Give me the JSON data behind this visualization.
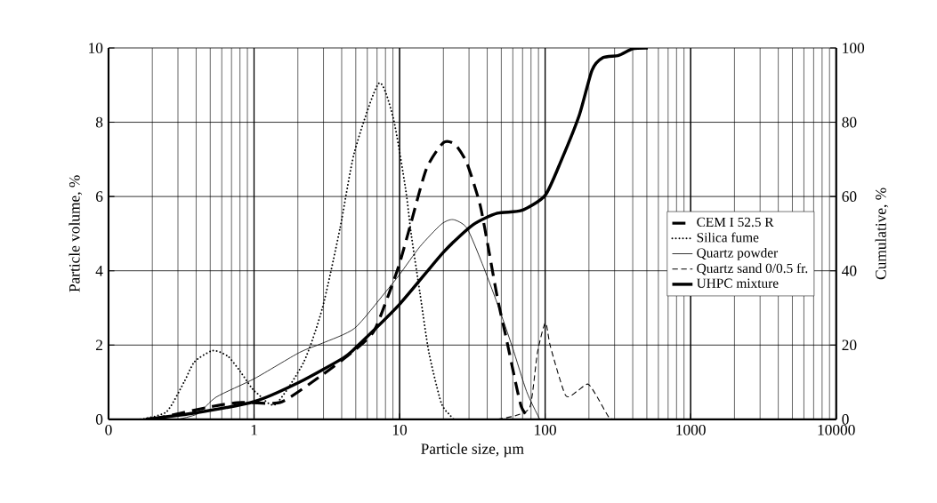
{
  "chart_data": {
    "type": "line",
    "xlabel": "Particle size, µm",
    "ylabel": "Particle volume, %",
    "y2label": "Cumulative, %",
    "log": "x",
    "grid": true,
    "legend": "right",
    "marker": "none",
    "xlim": [
      0.1,
      10000
    ],
    "xticks": [
      {
        "value": 0.1,
        "label": "0"
      },
      1,
      10,
      100,
      1000,
      10000
    ],
    "ylim": [
      0,
      10
    ],
    "yticks": [
      0,
      2,
      4,
      6,
      8,
      10
    ],
    "y2lim": [
      0,
      100
    ],
    "y2ticks": [
      0,
      20,
      40,
      60,
      80,
      100
    ],
    "series": [
      {
        "name": "CEM I 52.5 R",
        "color": "#000000",
        "line_style": "dashed",
        "x": [
          0.2,
          0.52,
          0.77,
          0.96,
          1.55,
          2.95,
          4.7,
          6.6,
          8.3,
          10,
          12,
          15.3,
          20,
          24.1,
          29,
          35.6,
          40.8,
          47.1,
          54.3,
          62.6,
          68.5,
          74.6,
          78.9
        ],
        "values": [
          0,
          0.35,
          0.45,
          0.45,
          0.47,
          1.2,
          1.8,
          2.35,
          3.3,
          4.2,
          5.3,
          6.75,
          7.45,
          7.4,
          6.9,
          5.8,
          4.6,
          3.25,
          2.15,
          1.0,
          0.35,
          0.1,
          0
        ]
      },
      {
        "name": "Silica fume",
        "color": "#000000",
        "line_style": "dotted",
        "x": [
          0.166,
          0.25,
          0.33,
          0.39,
          0.52,
          0.66,
          0.8,
          0.96,
          1.05,
          1.4,
          2.2,
          2.95,
          3.9,
          4.9,
          7.2,
          9.06,
          11,
          12,
          13.8,
          15.9,
          19.3,
          22.3,
          23.5
        ],
        "values": [
          0,
          0.2,
          1.0,
          1.55,
          1.85,
          1.7,
          1.3,
          0.85,
          0.7,
          0.4,
          1.55,
          3.0,
          5.15,
          7.2,
          9.05,
          8.1,
          6.2,
          5.0,
          3.4,
          1.8,
          0.45,
          0.1,
          0
        ]
      },
      {
        "name": "Quartz powder",
        "color": "#000000",
        "line_style": "solid",
        "x": [
          0.3,
          0.41,
          0.55,
          1.01,
          2.05,
          2.95,
          4.9,
          7.9,
          10,
          13.8,
          19.3,
          23.3,
          29,
          36.9,
          47.1,
          59.5,
          74.6,
          90.6,
          94
        ],
        "values": [
          0,
          0.15,
          0.6,
          1.1,
          1.8,
          2.05,
          2.45,
          3.4,
          3.9,
          4.65,
          5.25,
          5.38,
          5.15,
          4.2,
          3.1,
          1.95,
          0.75,
          0.05,
          0
        ]
      },
      {
        "name": "Quartz sand 0/0.5 fr.",
        "color": "#000000",
        "line_style": "dashed",
        "x": [
          47,
          62.6,
          78.9,
          88.6,
          100.5,
          108.9,
          138,
          165,
          197,
          228,
          275,
          310
        ],
        "values": [
          0,
          0.1,
          0.35,
          1.8,
          2.6,
          1.95,
          0.65,
          0.75,
          0.95,
          0.6,
          0.05,
          0
        ]
      },
      {
        "name": "UHPC mixture",
        "color": "#000000",
        "line_style": "solid",
        "axis": "y2",
        "x": [
          0.18,
          0.39,
          1.01,
          2.05,
          4.1,
          4.9,
          10,
          20,
          32,
          47,
          68.5,
          100,
          130,
          172,
          210,
          250,
          320,
          400,
          508
        ],
        "values": [
          0,
          1.7,
          4.8,
          10,
          16.5,
          19,
          31,
          45,
          52.4,
          55.5,
          56.2,
          60.3,
          70,
          82,
          94,
          97.4,
          98,
          99.8,
          100
        ]
      }
    ]
  }
}
